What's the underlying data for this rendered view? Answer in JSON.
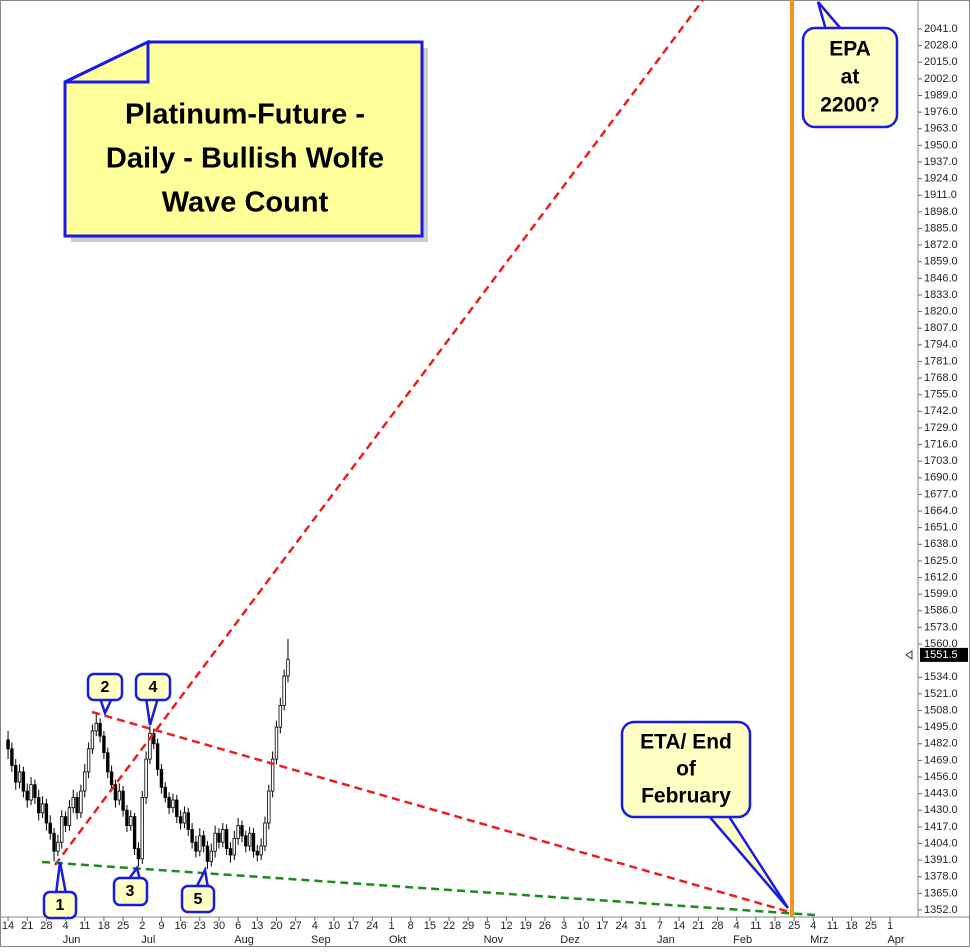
{
  "chart_data": {
    "type": "candlestick",
    "title_lines": [
      "Platinum-Future -",
      "Daily - Bullish Wolfe",
      "Wave Count"
    ],
    "wave_labels": [
      "1",
      "2",
      "3",
      "4",
      "5"
    ],
    "epa_lines": [
      "EPA",
      "at",
      "2200?"
    ],
    "eta_lines": [
      "ETA/ End",
      "of",
      "February"
    ],
    "months": [
      "Jun",
      "Jul",
      "Aug",
      "Sep",
      "Okt",
      "Nov",
      "Dez",
      "Jan",
      "Feb",
      "Mrz",
      "Apr"
    ],
    "open": [
      1485,
      1478,
      1465,
      1452,
      1460,
      1445,
      1438,
      1450,
      1440,
      1428,
      1435,
      1420,
      1412,
      1398,
      1405,
      1425,
      1418,
      1432,
      1440,
      1428,
      1445,
      1460,
      1478,
      1492,
      1498,
      1488,
      1475,
      1460,
      1450,
      1438,
      1445,
      1430,
      1418,
      1425,
      1400,
      1392,
      1440,
      1470,
      1490,
      1482,
      1462,
      1448,
      1440,
      1432,
      1438,
      1425,
      1420,
      1428,
      1415,
      1405,
      1398,
      1410,
      1402,
      1390,
      1398,
      1412,
      1405,
      1415,
      1400,
      1395,
      1408,
      1418,
      1410,
      1402,
      1412,
      1398,
      1395,
      1402,
      1420,
      1445,
      1470,
      1495,
      1512,
      1535
    ],
    "high": [
      1492,
      1483,
      1470,
      1466,
      1464,
      1451,
      1456,
      1454,
      1446,
      1441,
      1439,
      1426,
      1416,
      1411,
      1430,
      1429,
      1438,
      1446,
      1444,
      1450,
      1466,
      1483,
      1497,
      1505,
      1502,
      1492,
      1479,
      1465,
      1454,
      1451,
      1449,
      1434,
      1430,
      1428,
      1405,
      1445,
      1476,
      1496,
      1494,
      1486,
      1466,
      1452,
      1444,
      1443,
      1442,
      1430,
      1433,
      1432,
      1420,
      1410,
      1416,
      1414,
      1406,
      1404,
      1418,
      1416,
      1420,
      1419,
      1405,
      1414,
      1424,
      1422,
      1414,
      1417,
      1416,
      1403,
      1408,
      1425,
      1450,
      1476,
      1500,
      1518,
      1540,
      1564
    ],
    "low": [
      1470,
      1460,
      1446,
      1447,
      1440,
      1432,
      1434,
      1435,
      1422,
      1424,
      1414,
      1407,
      1390,
      1394,
      1400,
      1413,
      1414,
      1428,
      1423,
      1424,
      1440,
      1455,
      1474,
      1488,
      1483,
      1470,
      1455,
      1445,
      1432,
      1434,
      1425,
      1413,
      1414,
      1395,
      1386,
      1388,
      1435,
      1466,
      1478,
      1457,
      1443,
      1436,
      1427,
      1428,
      1420,
      1415,
      1416,
      1410,
      1400,
      1393,
      1394,
      1397,
      1384,
      1386,
      1393,
      1400,
      1401,
      1395,
      1389,
      1391,
      1403,
      1405,
      1397,
      1398,
      1393,
      1390,
      1391,
      1398,
      1415,
      1440,
      1466,
      1490,
      1508,
      1530
    ],
    "close": [
      1478,
      1465,
      1452,
      1460,
      1445,
      1438,
      1450,
      1440,
      1428,
      1435,
      1420,
      1412,
      1398,
      1405,
      1425,
      1418,
      1432,
      1440,
      1428,
      1445,
      1460,
      1478,
      1492,
      1498,
      1488,
      1475,
      1460,
      1450,
      1438,
      1445,
      1430,
      1418,
      1425,
      1400,
      1392,
      1440,
      1470,
      1490,
      1482,
      1462,
      1448,
      1440,
      1432,
      1438,
      1425,
      1420,
      1428,
      1415,
      1405,
      1398,
      1410,
      1402,
      1390,
      1398,
      1412,
      1405,
      1415,
      1400,
      1395,
      1408,
      1418,
      1410,
      1402,
      1412,
      1398,
      1395,
      1402,
      1420,
      1445,
      1470,
      1495,
      1512,
      1535,
      1548
    ],
    "last_price": 1551.5,
    "xlim": [
      -2.1,
      237.3
    ],
    "xticks": [
      {
        "value": 0,
        "label": "14"
      },
      {
        "value": 5,
        "label": "21"
      },
      {
        "value": 10,
        "label": "28"
      },
      {
        "value": 15,
        "label": "4"
      },
      {
        "value": 20,
        "label": "11"
      },
      {
        "value": 25,
        "label": "18"
      },
      {
        "value": 30,
        "label": "25"
      },
      {
        "value": 35,
        "label": "2"
      },
      {
        "value": 40,
        "label": "9"
      },
      {
        "value": 45,
        "label": "16"
      },
      {
        "value": 50,
        "label": "23"
      },
      {
        "value": 55,
        "label": "30"
      },
      {
        "value": 60,
        "label": "6"
      },
      {
        "value": 65,
        "label": "13"
      },
      {
        "value": 70,
        "label": "20"
      },
      {
        "value": 75,
        "label": "27"
      },
      {
        "value": 80,
        "label": "4"
      },
      {
        "value": 85,
        "label": "10"
      },
      {
        "value": 90,
        "label": "17"
      },
      {
        "value": 95,
        "label": "24"
      },
      {
        "value": 100,
        "label": "1"
      },
      {
        "value": 105,
        "label": "8"
      },
      {
        "value": 110,
        "label": "15"
      },
      {
        "value": 115,
        "label": "22"
      },
      {
        "value": 120,
        "label": "29"
      },
      {
        "value": 125,
        "label": "5"
      },
      {
        "value": 130,
        "label": "12"
      },
      {
        "value": 135,
        "label": "19"
      },
      {
        "value": 140,
        "label": "26"
      },
      {
        "value": 145,
        "label": "3"
      },
      {
        "value": 150,
        "label": "10"
      },
      {
        "value": 155,
        "label": "17"
      },
      {
        "value": 160,
        "label": "24"
      },
      {
        "value": 165,
        "label": "31"
      },
      {
        "value": 170,
        "label": "7"
      },
      {
        "value": 175,
        "label": "14"
      },
      {
        "value": 180,
        "label": "21"
      },
      {
        "value": 185,
        "label": "28"
      },
      {
        "value": 190,
        "label": "4"
      },
      {
        "value": 195,
        "label": "11"
      },
      {
        "value": 200,
        "label": "18"
      },
      {
        "value": 205,
        "label": "25"
      },
      {
        "value": 210,
        "label": "4"
      },
      {
        "value": 215,
        "label": "11"
      },
      {
        "value": 220,
        "label": "18"
      },
      {
        "value": 225,
        "label": "25"
      },
      {
        "value": 230,
        "label": "1"
      }
    ],
    "ylim": [
      1346.5,
      2063.7
    ],
    "yticks": [
      {
        "value": 1352,
        "label": "1352.0"
      },
      {
        "value": 1365,
        "label": "1365.0"
      },
      {
        "value": 1378,
        "label": "1378.0"
      },
      {
        "value": 1391,
        "label": "1391.0"
      },
      {
        "value": 1404,
        "label": "1404.0"
      },
      {
        "value": 1417,
        "label": "1417.0"
      },
      {
        "value": 1430,
        "label": "1430.0"
      },
      {
        "value": 1443,
        "label": "1443.0"
      },
      {
        "value": 1456,
        "label": "1456.0"
      },
      {
        "value": 1469,
        "label": "1469.0"
      },
      {
        "value": 1482,
        "label": "1482.0"
      },
      {
        "value": 1495,
        "label": "1495.0"
      },
      {
        "value": 1508,
        "label": "1508.0"
      },
      {
        "value": 1521,
        "label": "1521.0"
      },
      {
        "value": 1534,
        "label": "1534.0"
      },
      {
        "value": 1560,
        "label": "1560.0"
      },
      {
        "value": 1573,
        "label": "1573.0"
      },
      {
        "value": 1586,
        "label": "1586.0"
      },
      {
        "value": 1599,
        "label": "1599.0"
      },
      {
        "value": 1612,
        "label": "1612.0"
      },
      {
        "value": 1625,
        "label": "1625.0"
      },
      {
        "value": 1638,
        "label": "1638.0"
      },
      {
        "value": 1651,
        "label": "1651.0"
      },
      {
        "value": 1664,
        "label": "1664.0"
      },
      {
        "value": 1677,
        "label": "1677.0"
      },
      {
        "value": 1690,
        "label": "1690.0"
      },
      {
        "value": 1703,
        "label": "1703.0"
      },
      {
        "value": 1716,
        "label": "1716.0"
      },
      {
        "value": 1729,
        "label": "1729.0"
      },
      {
        "value": 1742,
        "label": "1742.0"
      },
      {
        "value": 1755,
        "label": "1755.0"
      },
      {
        "value": 1768,
        "label": "1768.0"
      },
      {
        "value": 1781,
        "label": "1781.0"
      },
      {
        "value": 1794,
        "label": "1794.0"
      },
      {
        "value": 1807,
        "label": "1807.0"
      },
      {
        "value": 1820,
        "label": "1820.0"
      },
      {
        "value": 1833,
        "label": "1833.0"
      },
      {
        "value": 1846,
        "label": "1846.0"
      },
      {
        "value": 1859,
        "label": "1859.0"
      },
      {
        "value": 1872,
        "label": "1872.0"
      },
      {
        "value": 1885,
        "label": "1885.0"
      },
      {
        "value": 1898,
        "label": "1898.0"
      },
      {
        "value": 1911,
        "label": "1911.0"
      },
      {
        "value": 1924,
        "label": "1924.0"
      },
      {
        "value": 1937,
        "label": "1937.0"
      },
      {
        "value": 1950,
        "label": "1950.0"
      },
      {
        "value": 1963,
        "label": "1963.0"
      },
      {
        "value": 1976,
        "label": "1976.0"
      },
      {
        "value": 1989,
        "label": "1989.0"
      },
      {
        "value": 2002,
        "label": "2002.0"
      },
      {
        "value": 2015,
        "label": "2015.0"
      },
      {
        "value": 2028,
        "label": "2028.0"
      },
      {
        "value": 2041,
        "label": "2041.0"
      }
    ]
  }
}
